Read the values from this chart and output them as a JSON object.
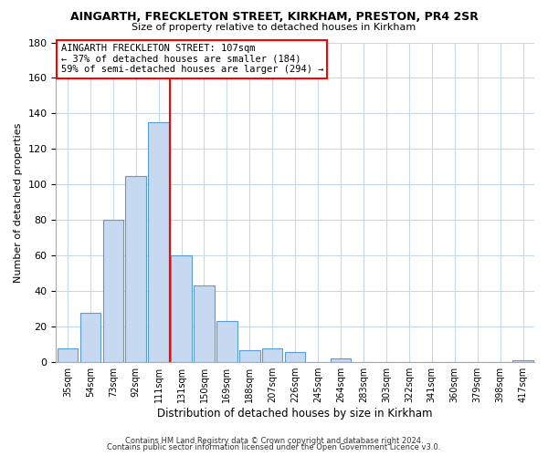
{
  "title": "AINGARTH, FRECKLETON STREET, KIRKHAM, PRESTON, PR4 2SR",
  "subtitle": "Size of property relative to detached houses in Kirkham",
  "xlabel": "Distribution of detached houses by size in Kirkham",
  "ylabel": "Number of detached properties",
  "bar_labels": [
    "35sqm",
    "54sqm",
    "73sqm",
    "92sqm",
    "111sqm",
    "131sqm",
    "150sqm",
    "169sqm",
    "188sqm",
    "207sqm",
    "226sqm",
    "245sqm",
    "264sqm",
    "283sqm",
    "303sqm",
    "322sqm",
    "341sqm",
    "360sqm",
    "379sqm",
    "398sqm",
    "417sqm"
  ],
  "bar_values": [
    8,
    28,
    80,
    105,
    135,
    60,
    43,
    23,
    7,
    8,
    6,
    0,
    2,
    0,
    0,
    0,
    0,
    0,
    0,
    0,
    1
  ],
  "bar_color": "#c6d9f0",
  "bar_edge_color": "#5b9bd5",
  "vline_index": 4,
  "vline_color": "#ff0000",
  "ylim": [
    0,
    180
  ],
  "yticks": [
    0,
    20,
    40,
    60,
    80,
    100,
    120,
    140,
    160,
    180
  ],
  "annotation_title": "AINGARTH FRECKLETON STREET: 107sqm",
  "annotation_line1": "← 37% of detached houses are smaller (184)",
  "annotation_line2": "59% of semi-detached houses are larger (294) →",
  "footer1": "Contains HM Land Registry data © Crown copyright and database right 2024.",
  "footer2": "Contains public sector information licensed under the Open Government Licence v3.0.",
  "background_color": "#ffffff",
  "grid_color": "#c8d8ec"
}
